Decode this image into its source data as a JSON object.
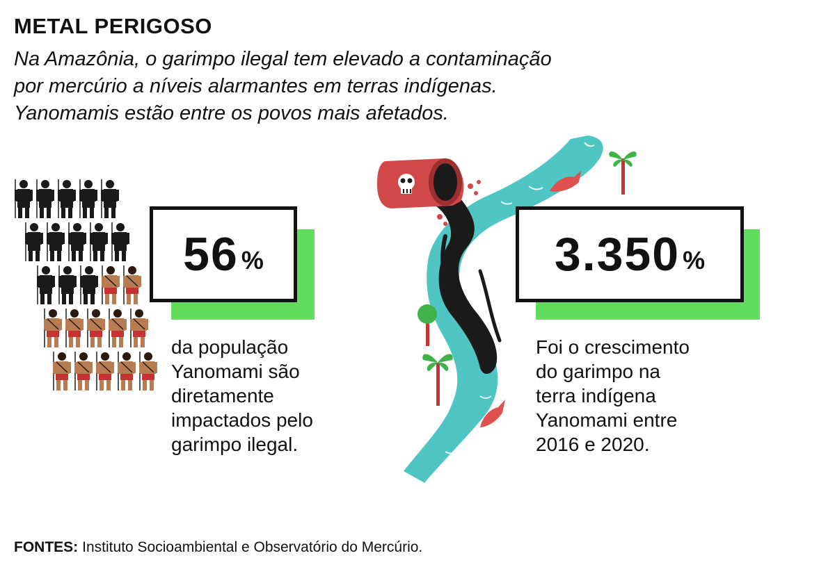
{
  "header": {
    "title": "METAL PERIGOSO",
    "subtitle_lines": [
      "Na Amazônia, o garimpo ilegal tem elevado a contaminação",
      "por mercúrio a níveis alarmantes em terras indígenas.",
      "Yanomamis estão entre os povos mais afetados."
    ]
  },
  "stats": [
    {
      "value": "56",
      "unit": "%",
      "description_lines": [
        "da população",
        "Yanomami são",
        "diretamente",
        "impactados pelo",
        "garimpo ilegal."
      ],
      "fraction_impacted": 0.56
    },
    {
      "value": "3.350",
      "unit": "%",
      "description_lines": [
        "Foi o crescimento",
        "do garimpo na",
        "terra indígena",
        "Yanomami entre",
        "2016 e 2020."
      ]
    }
  ],
  "footer": {
    "label": "FONTES:",
    "text": "Instituto Socioambiental e Observatório do Mercúrio."
  },
  "colors": {
    "accent_green": "#62dc5c",
    "river": "#4fc6c4",
    "silhouette": "#1a1a1a",
    "skin": "#b77c52",
    "loincloth": "#c63232",
    "barrel": "#d04848",
    "fish": "#e0504e",
    "palm": "#3fb24a",
    "stem": "#c2333a"
  },
  "icons": {
    "people": "person-icon",
    "barrel": "mercury-barrel-icon",
    "skull": "skull-icon",
    "fish": "fish-icon",
    "palm": "palm-tree-icon"
  }
}
